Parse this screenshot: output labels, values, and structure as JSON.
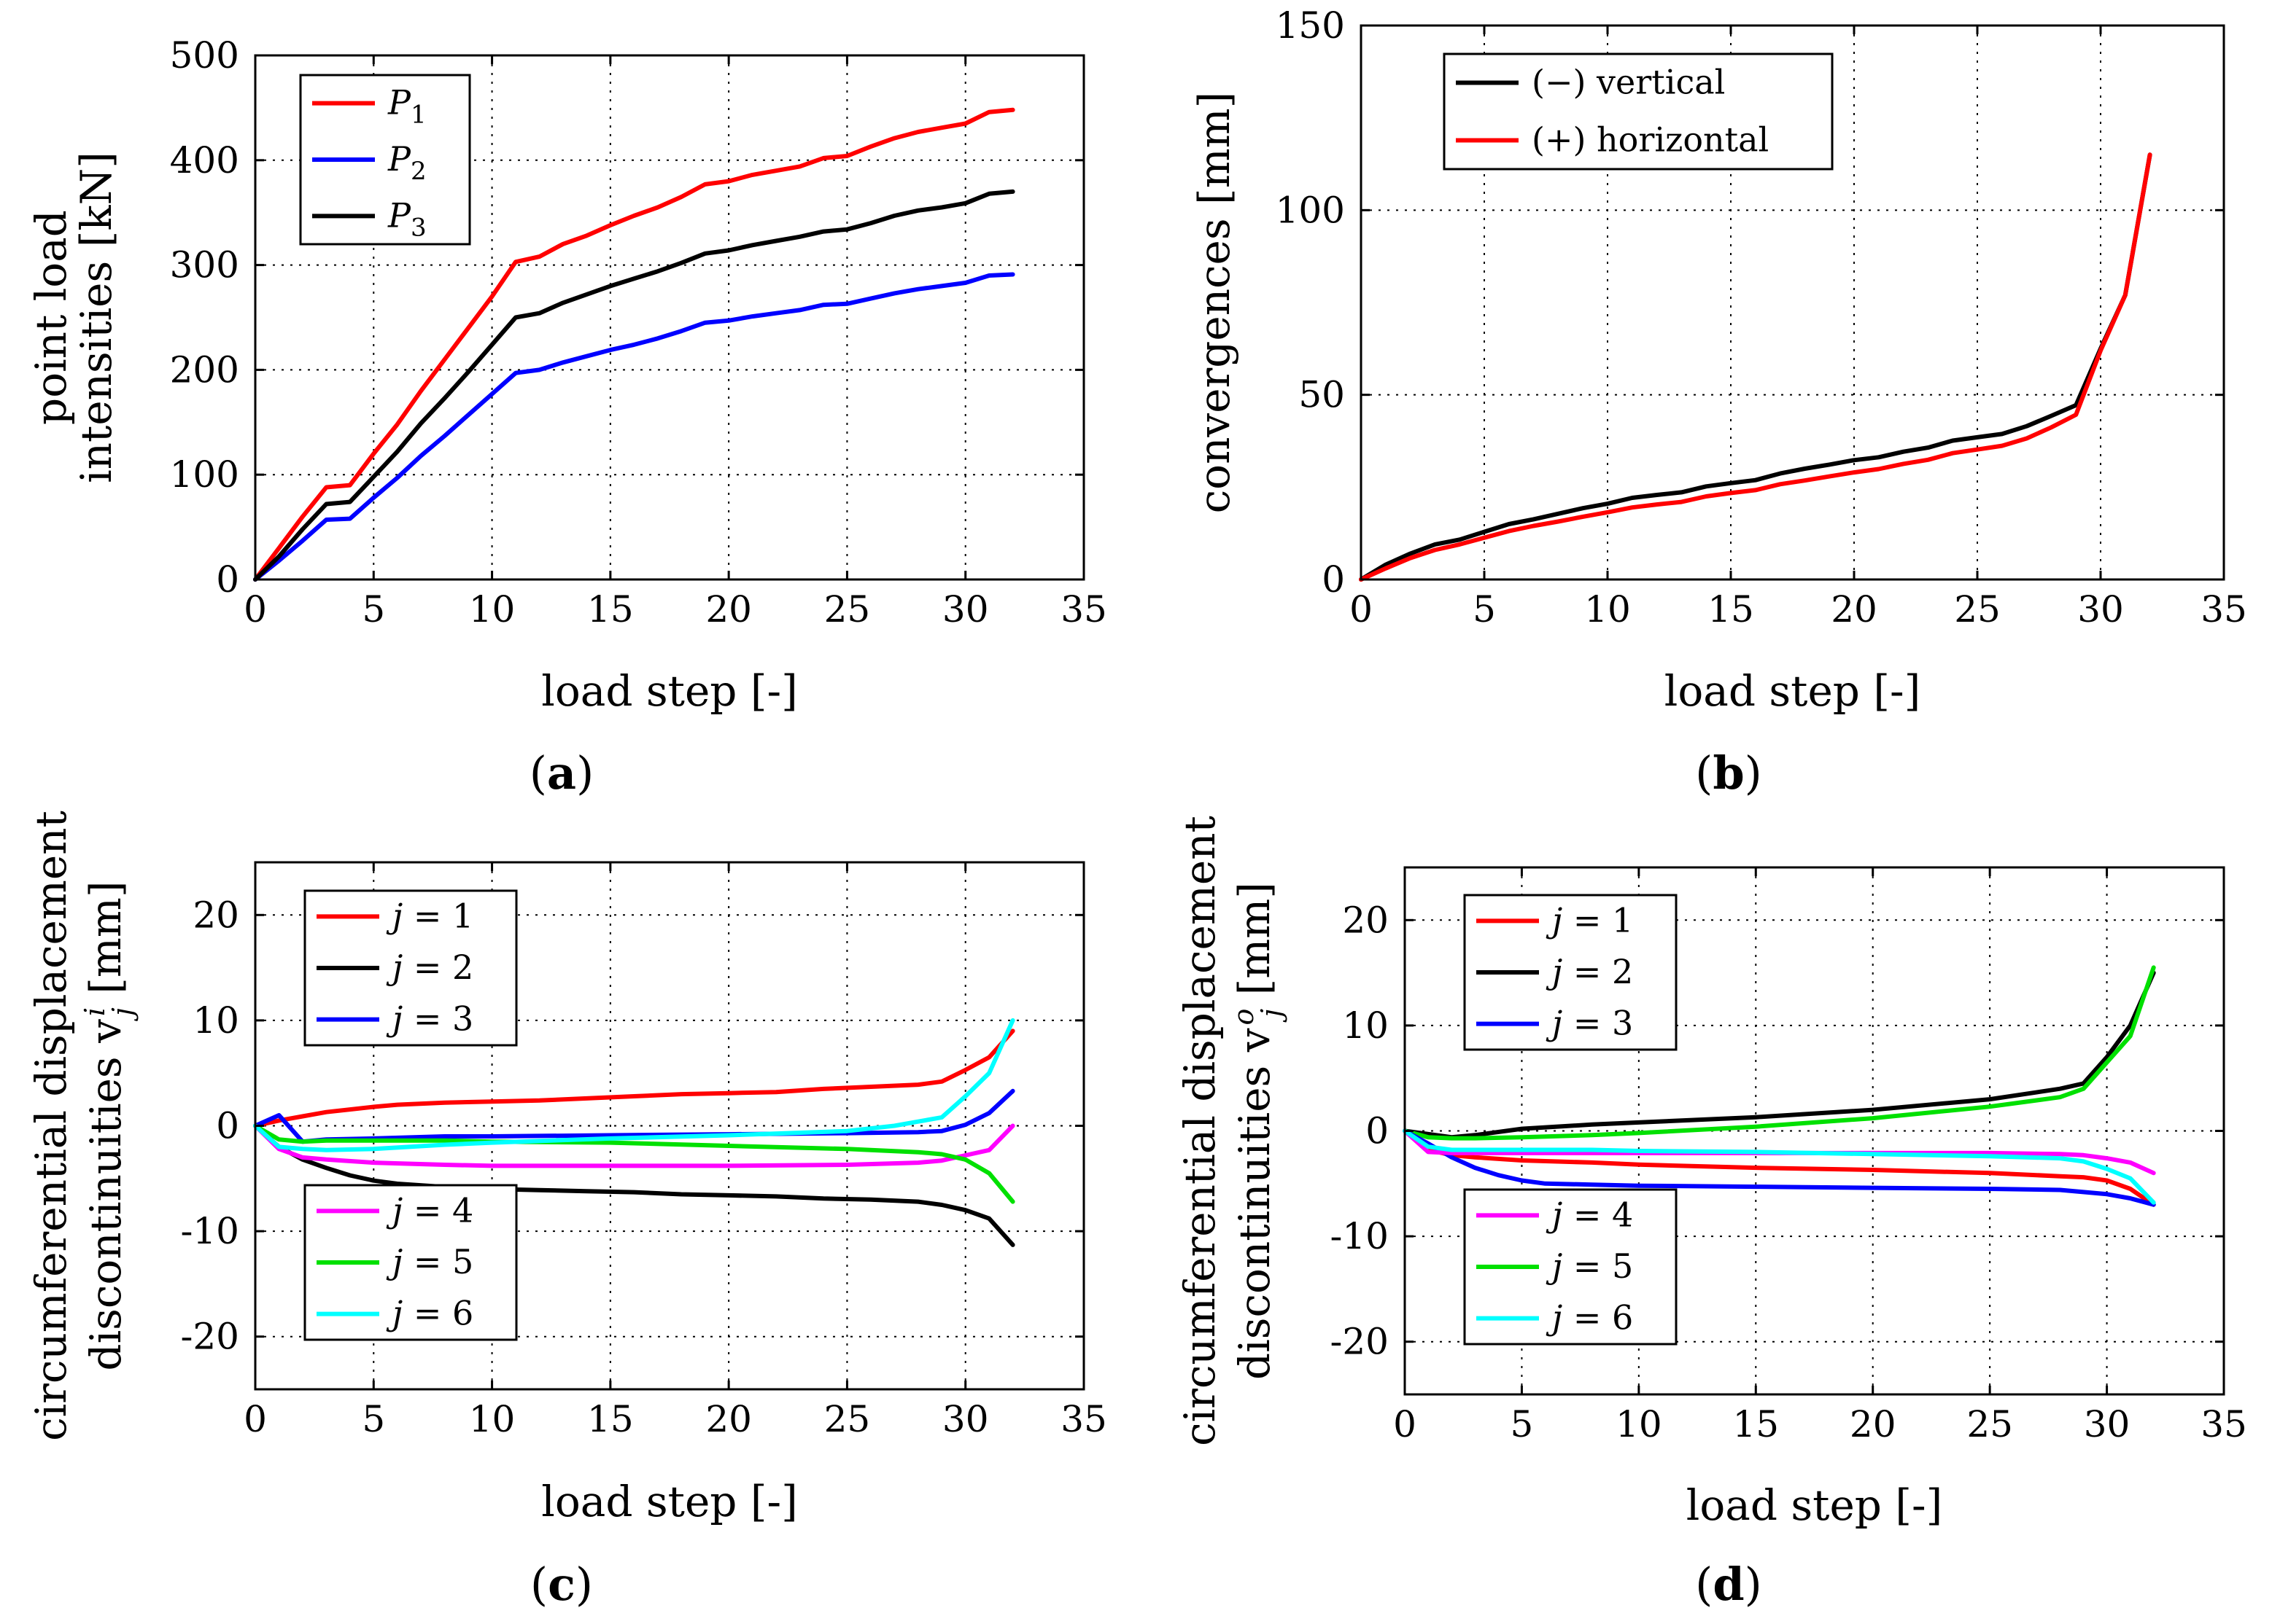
{
  "chart_data": [
    {
      "id": "a",
      "type": "line",
      "caption": "a",
      "xlabel": "load step [-]",
      "ylabel": [
        "point load",
        "intensities [kN]"
      ],
      "xlim": [
        0,
        35
      ],
      "ylim": [
        0,
        500
      ],
      "xticks": [
        0,
        5,
        10,
        15,
        20,
        25,
        30,
        35
      ],
      "yticks": [
        0,
        100,
        200,
        300,
        400,
        500
      ],
      "xtick_labels": [
        "0",
        "5",
        "10",
        "15",
        "20",
        "25",
        "30",
        "35"
      ],
      "ytick_labels": [
        "0",
        "100",
        "200",
        "300",
        "400",
        "500"
      ],
      "grid": true,
      "legends": [
        {
          "placement": "top-left",
          "entries": [
            {
              "name": "P",
              "sub": "1",
              "color": "#ff0000"
            },
            {
              "name": "P",
              "sub": "2",
              "color": "#0000ff"
            },
            {
              "name": "P",
              "sub": "3",
              "color": "#000000"
            }
          ]
        }
      ],
      "series": [
        {
          "name": "P1",
          "color": "#ff0000",
          "x": [
            0,
            1,
            2,
            3,
            4,
            5,
            6,
            7,
            8,
            9,
            10,
            11,
            12,
            13,
            14,
            15,
            16,
            17,
            18,
            19,
            20,
            21,
            22,
            23,
            24,
            25,
            26,
            27,
            28,
            29,
            30,
            31,
            32
          ],
          "y": [
            0,
            30,
            60,
            88,
            90,
            120,
            148,
            180,
            210,
            240,
            270,
            303,
            308,
            320,
            328,
            338,
            347,
            355,
            365,
            377,
            380,
            386,
            390,
            394,
            402,
            404,
            413,
            421,
            427,
            431,
            435,
            446,
            448
          ]
        },
        {
          "name": "P2",
          "color": "#0000ff",
          "x": [
            0,
            1,
            2,
            3,
            4,
            5,
            6,
            7,
            8,
            9,
            10,
            11,
            12,
            13,
            14,
            15,
            16,
            17,
            18,
            19,
            20,
            21,
            22,
            23,
            24,
            25,
            26,
            27,
            28,
            29,
            30,
            31,
            32
          ],
          "y": [
            0,
            18,
            37,
            57,
            58,
            78,
            97,
            118,
            137,
            157,
            177,
            197,
            200,
            207,
            213,
            219,
            224,
            230,
            237,
            245,
            247,
            251,
            254,
            257,
            262,
            263,
            268,
            273,
            277,
            280,
            283,
            290,
            291
          ]
        },
        {
          "name": "P3",
          "color": "#000000",
          "x": [
            0,
            1,
            2,
            3,
            4,
            5,
            6,
            7,
            8,
            9,
            10,
            11,
            12,
            13,
            14,
            15,
            16,
            17,
            18,
            19,
            20,
            21,
            22,
            23,
            24,
            25,
            26,
            27,
            28,
            29,
            30,
            31,
            32
          ],
          "y": [
            0,
            22,
            48,
            72,
            74,
            98,
            122,
            149,
            173,
            198,
            224,
            250,
            254,
            264,
            272,
            280,
            287,
            294,
            302,
            311,
            314,
            319,
            323,
            327,
            332,
            334,
            340,
            347,
            352,
            355,
            359,
            368,
            370
          ]
        }
      ]
    },
    {
      "id": "b",
      "type": "line",
      "caption": "b",
      "xlabel": "load step [-]",
      "ylabel": [
        "convergences [mm]"
      ],
      "xlim": [
        0,
        35
      ],
      "ylim": [
        0,
        150
      ],
      "xticks": [
        0,
        5,
        10,
        15,
        20,
        25,
        30,
        35
      ],
      "yticks": [
        0,
        50,
        100,
        150
      ],
      "xtick_labels": [
        "0",
        "5",
        "10",
        "15",
        "20",
        "25",
        "30",
        "35"
      ],
      "ytick_labels": [
        "0",
        "50",
        "100",
        "150"
      ],
      "grid": true,
      "legends": [
        {
          "placement": "top-left",
          "entries": [
            {
              "name": "(−) vertical",
              "color": "#000000"
            },
            {
              "name": "(+) horizontal",
              "color": "#ff0000"
            }
          ]
        }
      ],
      "series": [
        {
          "name": "(−) vertical",
          "color": "#000000",
          "x": [
            0,
            1,
            2,
            3,
            4,
            5,
            6,
            7,
            8,
            9,
            10,
            11,
            12,
            13,
            14,
            15,
            16,
            17,
            18,
            19,
            20,
            21,
            22,
            23,
            24,
            25,
            26,
            27,
            28,
            29,
            30,
            31,
            32
          ],
          "y": [
            0,
            4,
            7,
            9.5,
            10.8,
            12.9,
            15,
            16.3,
            17.8,
            19.3,
            20.5,
            22.1,
            22.9,
            23.6,
            25.2,
            26.1,
            26.9,
            28.7,
            30,
            31.1,
            32.3,
            33.1,
            34.6,
            35.7,
            37.6,
            38.5,
            39.4,
            41.5,
            44.3,
            47.2,
            62.5,
            77,
            115
          ]
        },
        {
          "name": "(+) horizontal",
          "color": "#ff0000",
          "x": [
            0,
            1,
            2,
            3,
            4,
            5,
            6,
            7,
            8,
            9,
            10,
            11,
            12,
            13,
            14,
            15,
            16,
            17,
            18,
            19,
            20,
            21,
            22,
            23,
            24,
            25,
            26,
            27,
            28,
            29,
            30,
            31,
            32
          ],
          "y": [
            0,
            3,
            5.8,
            8,
            9.5,
            11.3,
            13.1,
            14.5,
            15.7,
            17,
            18.2,
            19.5,
            20.3,
            21,
            22.5,
            23.4,
            24.2,
            25.8,
            26.8,
            27.9,
            29,
            29.9,
            31.3,
            32.4,
            34.2,
            35.2,
            36.2,
            38.2,
            41.2,
            44.6,
            62,
            77,
            115
          ]
        }
      ]
    },
    {
      "id": "c",
      "type": "line",
      "caption": "c",
      "xlabel": "load step [-]",
      "ylabel": [
        "circumferential displacement",
        "discontinuities v"
      ],
      "ylabel_sup": "i",
      "ylabel_sub": "j",
      "ylabel_unit": " [mm]",
      "xlim": [
        0,
        35
      ],
      "ylim": [
        -25,
        25
      ],
      "xticks": [
        0,
        5,
        10,
        15,
        20,
        25,
        30,
        35
      ],
      "yticks": [
        -20,
        -10,
        0,
        10,
        20
      ],
      "xtick_labels": [
        "0",
        "5",
        "10",
        "15",
        "20",
        "25",
        "30",
        "35"
      ],
      "ytick_labels": [
        "-20",
        "-10",
        "0",
        "10",
        "20"
      ],
      "grid": true,
      "legends": [
        {
          "placement": "top-left",
          "entries": [
            {
              "name": "j = 1",
              "color": "#ff0000"
            },
            {
              "name": "j = 2",
              "color": "#000000"
            },
            {
              "name": "j = 3",
              "color": "#0000ff"
            }
          ]
        },
        {
          "placement": "bottom-left",
          "entries": [
            {
              "name": "j = 4",
              "color": "#ff00ff"
            },
            {
              "name": "j = 5",
              "color": "#00e000"
            },
            {
              "name": "j = 6",
              "color": "#00ffff"
            }
          ]
        }
      ],
      "series": [
        {
          "name": "j = 1",
          "color": "#ff0000",
          "x": [
            0,
            1,
            2,
            3,
            5,
            6,
            8,
            10,
            12,
            14,
            16,
            18,
            20,
            22,
            24,
            26,
            28,
            29,
            30,
            31,
            32
          ],
          "y": [
            0,
            0.5,
            0.9,
            1.3,
            1.8,
            2.0,
            2.2,
            2.3,
            2.4,
            2.6,
            2.8,
            3.0,
            3.1,
            3.2,
            3.5,
            3.7,
            3.9,
            4.2,
            5.3,
            6.5,
            9
          ]
        },
        {
          "name": "j = 2",
          "color": "#000000",
          "x": [
            0,
            1,
            2,
            3,
            4,
            5,
            6,
            8,
            10,
            12,
            14,
            16,
            18,
            20,
            22,
            24,
            26,
            28,
            29,
            30,
            31,
            32
          ],
          "y": [
            0,
            -2,
            -3.2,
            -4,
            -4.7,
            -5.2,
            -5.5,
            -5.8,
            -6,
            -6.1,
            -6.2,
            -6.3,
            -6.5,
            -6.6,
            -6.7,
            -6.9,
            -7.0,
            -7.2,
            -7.5,
            -8.0,
            -8.8,
            -11.3
          ]
        },
        {
          "name": "j = 3",
          "color": "#0000ff",
          "x": [
            0,
            1,
            2,
            3,
            5,
            8,
            10,
            15,
            20,
            25,
            28,
            29,
            30,
            31,
            32
          ],
          "y": [
            0,
            1,
            -1.5,
            -1.3,
            -1.2,
            -1.0,
            -1.0,
            -0.9,
            -0.8,
            -0.7,
            -0.6,
            -0.5,
            0.1,
            1.2,
            3.3
          ]
        },
        {
          "name": "j = 4",
          "color": "#ff00ff",
          "x": [
            0,
            1,
            2,
            3,
            5,
            8,
            10,
            15,
            20,
            25,
            28,
            29,
            30,
            31,
            32
          ],
          "y": [
            0,
            -2.2,
            -3.0,
            -3.2,
            -3.5,
            -3.7,
            -3.8,
            -3.8,
            -3.8,
            -3.7,
            -3.5,
            -3.3,
            -2.8,
            -2.3,
            0
          ]
        },
        {
          "name": "j = 5",
          "color": "#00e000",
          "x": [
            0,
            1,
            2,
            3,
            5,
            8,
            10,
            15,
            20,
            25,
            28,
            29,
            30,
            31,
            32
          ],
          "y": [
            0,
            -1.3,
            -1.5,
            -1.4,
            -1.4,
            -1.4,
            -1.5,
            -1.6,
            -1.9,
            -2.2,
            -2.5,
            -2.7,
            -3.2,
            -4.5,
            -7.2
          ]
        },
        {
          "name": "j = 6",
          "color": "#00ffff",
          "x": [
            0,
            1,
            2,
            3,
            5,
            8,
            10,
            15,
            20,
            25,
            27,
            28,
            29,
            30,
            31,
            32
          ],
          "y": [
            0,
            -2.0,
            -2.2,
            -2.3,
            -2.2,
            -1.8,
            -1.6,
            -1.2,
            -0.9,
            -0.5,
            0,
            0.4,
            0.8,
            2.8,
            5.0,
            10
          ]
        }
      ]
    },
    {
      "id": "d",
      "type": "line",
      "caption": "d",
      "xlabel": "load step [-]",
      "ylabel": [
        "circumferential displacement",
        "discontinuities v"
      ],
      "ylabel_sup": "o",
      "ylabel_sub": "j",
      "ylabel_unit": " [mm]",
      "xlim": [
        0,
        35
      ],
      "ylim": [
        -25,
        25
      ],
      "xticks": [
        0,
        5,
        10,
        15,
        20,
        25,
        30,
        35
      ],
      "yticks": [
        -20,
        -10,
        0,
        10,
        20
      ],
      "xtick_labels": [
        "0",
        "5",
        "10",
        "15",
        "20",
        "25",
        "30",
        "35"
      ],
      "ytick_labels": [
        "-20",
        "-10",
        "0",
        "10",
        "20"
      ],
      "grid": true,
      "legends": [
        {
          "placement": "top-left",
          "entries": [
            {
              "name": "j = 1",
              "color": "#ff0000"
            },
            {
              "name": "j = 2",
              "color": "#000000"
            },
            {
              "name": "j = 3",
              "color": "#0000ff"
            }
          ]
        },
        {
          "placement": "bottom-left",
          "entries": [
            {
              "name": "j = 4",
              "color": "#ff00ff"
            },
            {
              "name": "j = 5",
              "color": "#00e000"
            },
            {
              "name": "j = 6",
              "color": "#00ffff"
            }
          ]
        }
      ],
      "series": [
        {
          "name": "j = 1",
          "color": "#ff0000",
          "x": [
            0,
            1,
            2,
            3,
            5,
            8,
            10,
            15,
            20,
            25,
            28,
            29,
            30,
            31,
            32
          ],
          "y": [
            0,
            -1.8,
            -2.3,
            -2.5,
            -2.8,
            -3.0,
            -3.2,
            -3.5,
            -3.7,
            -4.0,
            -4.3,
            -4.4,
            -4.7,
            -5.5,
            -7
          ]
        },
        {
          "name": "j = 2",
          "color": "#000000",
          "x": [
            0,
            2,
            3,
            5,
            8,
            10,
            15,
            20,
            25,
            28,
            29,
            30,
            31,
            32
          ],
          "y": [
            0,
            -0.6,
            -0.4,
            0.2,
            0.6,
            0.8,
            1.3,
            2.0,
            3.0,
            4.0,
            4.5,
            7.0,
            10.0,
            15
          ]
        },
        {
          "name": "j = 5",
          "color": "#00e000",
          "x": [
            0,
            1,
            2,
            3,
            5,
            8,
            10,
            15,
            20,
            25,
            28,
            29,
            30,
            31,
            32
          ],
          "y": [
            0,
            -0.6,
            -0.7,
            -0.7,
            -0.6,
            -0.4,
            -0.2,
            0.4,
            1.2,
            2.3,
            3.2,
            4.0,
            6.5,
            9.0,
            15.5
          ]
        },
        {
          "name": "j = 3",
          "color": "#0000ff",
          "x": [
            0,
            1,
            2,
            3,
            4,
            5,
            6,
            8,
            10,
            15,
            20,
            25,
            28,
            29,
            30,
            31,
            32
          ],
          "y": [
            0,
            -1.2,
            -2.5,
            -3.5,
            -4.2,
            -4.7,
            -5.0,
            -5.1,
            -5.2,
            -5.3,
            -5.4,
            -5.5,
            -5.6,
            -5.8,
            -6.0,
            -6.4,
            -7
          ]
        },
        {
          "name": "j = 4",
          "color": "#ff00ff",
          "x": [
            0,
            1,
            2,
            3,
            5,
            8,
            10,
            15,
            20,
            25,
            28,
            29,
            30,
            31,
            32
          ],
          "y": [
            0,
            -2.0,
            -2.1,
            -2.1,
            -2.1,
            -2.1,
            -2.1,
            -2.1,
            -2.1,
            -2.1,
            -2.2,
            -2.3,
            -2.6,
            -3.0,
            -4
          ]
        },
        {
          "name": "j = 6",
          "color": "#00ffff",
          "x": [
            0,
            1,
            2,
            3,
            5,
            8,
            10,
            15,
            20,
            25,
            28,
            29,
            30,
            31,
            32
          ],
          "y": [
            0,
            -1.5,
            -1.8,
            -1.8,
            -1.8,
            -1.8,
            -1.9,
            -2.0,
            -2.2,
            -2.4,
            -2.6,
            -2.9,
            -3.6,
            -4.5,
            -6.8
          ]
        }
      ]
    }
  ]
}
